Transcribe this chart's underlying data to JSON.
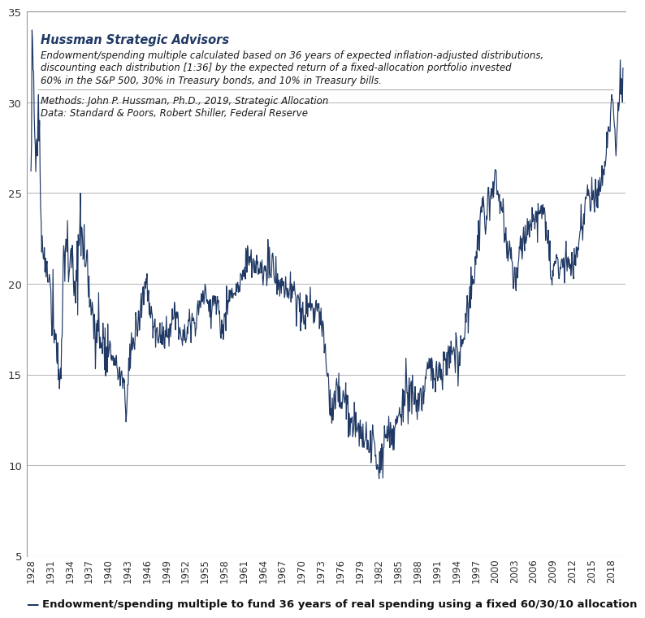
{
  "title_company": "Hussman Strategic Advisors",
  "title_desc1": "Endowment/spending multiple calculated based on 36 years of expected inflation-adjusted distributions,",
  "title_desc2": "discounting each distribution [1:36] by the expected return of a fixed-allocation portfolio invested",
  "title_desc3": "60% in the S&P 500, 30% in Treasury bonds, and 10% in Treasury bills.",
  "methods_line": "Methods: John P. Hussman, Ph.D., 2019, Strategic Allocation",
  "data_line": "Data: Standard & Poors, Robert Shiller, Federal Reserve",
  "legend_label": "Endowment/spending multiple to fund 36 years of real spending using a fixed 60/30/10 allocation",
  "line_color": "#1f3864",
  "background_color": "#ffffff",
  "ylim": [
    5,
    35
  ],
  "yticks": [
    5,
    10,
    15,
    20,
    25,
    30,
    35
  ],
  "grid_color": "#bbbbbb",
  "key_points": [
    [
      1928.0,
      26.0
    ],
    [
      1928.08,
      29.0
    ],
    [
      1928.17,
      33.5
    ],
    [
      1928.33,
      31.0
    ],
    [
      1928.5,
      29.5
    ],
    [
      1928.67,
      27.5
    ],
    [
      1928.83,
      26.0
    ],
    [
      1929.0,
      28.5
    ],
    [
      1929.17,
      30.0
    ],
    [
      1929.33,
      28.0
    ],
    [
      1929.5,
      25.0
    ],
    [
      1929.67,
      22.5
    ],
    [
      1929.83,
      21.5
    ],
    [
      1930.0,
      22.0
    ],
    [
      1930.33,
      21.0
    ],
    [
      1930.67,
      20.0
    ],
    [
      1931.0,
      19.5
    ],
    [
      1931.33,
      18.5
    ],
    [
      1931.67,
      17.0
    ],
    [
      1932.0,
      16.5
    ],
    [
      1932.25,
      15.5
    ],
    [
      1932.5,
      14.5
    ],
    [
      1932.75,
      16.0
    ],
    [
      1933.0,
      21.5
    ],
    [
      1933.25,
      22.5
    ],
    [
      1933.5,
      22.0
    ],
    [
      1933.75,
      21.0
    ],
    [
      1934.0,
      20.5
    ],
    [
      1934.25,
      21.5
    ],
    [
      1934.5,
      20.5
    ],
    [
      1934.75,
      19.5
    ],
    [
      1935.0,
      20.0
    ],
    [
      1935.25,
      21.0
    ],
    [
      1935.5,
      23.0
    ],
    [
      1935.75,
      22.5
    ],
    [
      1936.0,
      22.0
    ],
    [
      1936.25,
      21.5
    ],
    [
      1936.5,
      20.5
    ],
    [
      1936.75,
      20.5
    ],
    [
      1937.0,
      20.0
    ],
    [
      1937.25,
      19.5
    ],
    [
      1937.5,
      18.5
    ],
    [
      1937.75,
      17.5
    ],
    [
      1938.0,
      17.0
    ],
    [
      1938.25,
      17.0
    ],
    [
      1938.5,
      17.5
    ],
    [
      1938.75,
      17.0
    ],
    [
      1939.0,
      17.0
    ],
    [
      1939.25,
      17.0
    ],
    [
      1939.5,
      16.5
    ],
    [
      1939.75,
      16.5
    ],
    [
      1940.0,
      16.5
    ],
    [
      1940.25,
      16.5
    ],
    [
      1940.5,
      16.0
    ],
    [
      1940.75,
      15.5
    ],
    [
      1941.0,
      15.5
    ],
    [
      1941.25,
      15.5
    ],
    [
      1941.5,
      15.0
    ],
    [
      1941.75,
      15.0
    ],
    [
      1942.0,
      15.0
    ],
    [
      1942.25,
      14.5
    ],
    [
      1942.5,
      14.5
    ],
    [
      1942.75,
      12.5
    ],
    [
      1943.0,
      15.0
    ],
    [
      1943.25,
      15.5
    ],
    [
      1943.5,
      16.5
    ],
    [
      1943.75,
      17.0
    ],
    [
      1944.0,
      16.5
    ],
    [
      1944.25,
      17.5
    ],
    [
      1944.5,
      17.5
    ],
    [
      1944.75,
      18.0
    ],
    [
      1945.0,
      18.5
    ],
    [
      1945.25,
      19.0
    ],
    [
      1945.5,
      19.5
    ],
    [
      1945.75,
      20.0
    ],
    [
      1946.0,
      20.0
    ],
    [
      1946.25,
      19.0
    ],
    [
      1946.5,
      18.5
    ],
    [
      1946.75,
      18.0
    ],
    [
      1947.0,
      17.5
    ],
    [
      1947.25,
      17.5
    ],
    [
      1947.5,
      17.5
    ],
    [
      1947.75,
      17.0
    ],
    [
      1948.0,
      17.0
    ],
    [
      1948.25,
      17.0
    ],
    [
      1948.5,
      17.0
    ],
    [
      1948.75,
      17.0
    ],
    [
      1949.0,
      17.5
    ],
    [
      1949.25,
      17.5
    ],
    [
      1949.5,
      17.5
    ],
    [
      1949.75,
      18.0
    ],
    [
      1950.0,
      18.0
    ],
    [
      1950.25,
      18.5
    ],
    [
      1950.5,
      18.0
    ],
    [
      1950.75,
      18.0
    ],
    [
      1951.0,
      17.5
    ],
    [
      1951.25,
      17.5
    ],
    [
      1951.5,
      17.5
    ],
    [
      1951.75,
      17.5
    ],
    [
      1952.0,
      17.5
    ],
    [
      1952.25,
      17.5
    ],
    [
      1952.5,
      18.0
    ],
    [
      1952.75,
      18.0
    ],
    [
      1953.0,
      18.0
    ],
    [
      1953.25,
      18.0
    ],
    [
      1953.5,
      17.5
    ],
    [
      1953.75,
      18.0
    ],
    [
      1954.0,
      18.5
    ],
    [
      1954.25,
      19.0
    ],
    [
      1954.5,
      19.5
    ],
    [
      1954.75,
      19.5
    ],
    [
      1955.0,
      19.5
    ],
    [
      1955.25,
      19.0
    ],
    [
      1955.5,
      19.0
    ],
    [
      1955.75,
      18.5
    ],
    [
      1956.0,
      18.5
    ],
    [
      1956.25,
      19.0
    ],
    [
      1956.5,
      19.0
    ],
    [
      1956.75,
      19.0
    ],
    [
      1957.0,
      19.0
    ],
    [
      1957.25,
      18.5
    ],
    [
      1957.5,
      17.5
    ],
    [
      1957.75,
      17.5
    ],
    [
      1958.0,
      18.0
    ],
    [
      1958.25,
      18.5
    ],
    [
      1958.5,
      19.0
    ],
    [
      1958.75,
      19.5
    ],
    [
      1959.0,
      19.5
    ],
    [
      1959.25,
      19.5
    ],
    [
      1959.5,
      19.5
    ],
    [
      1959.75,
      19.5
    ],
    [
      1960.0,
      19.5
    ],
    [
      1960.25,
      19.5
    ],
    [
      1960.5,
      20.0
    ],
    [
      1960.75,
      20.5
    ],
    [
      1961.0,
      20.5
    ],
    [
      1961.25,
      21.0
    ],
    [
      1961.5,
      21.5
    ],
    [
      1961.75,
      21.5
    ],
    [
      1962.0,
      21.5
    ],
    [
      1962.25,
      21.0
    ],
    [
      1962.5,
      20.5
    ],
    [
      1962.75,
      21.0
    ],
    [
      1963.0,
      21.0
    ],
    [
      1963.25,
      21.0
    ],
    [
      1963.5,
      21.0
    ],
    [
      1963.75,
      21.0
    ],
    [
      1964.0,
      20.5
    ],
    [
      1964.25,
      21.0
    ],
    [
      1964.5,
      20.5
    ],
    [
      1964.75,
      21.0
    ],
    [
      1965.0,
      21.0
    ],
    [
      1965.25,
      20.5
    ],
    [
      1965.5,
      21.0
    ],
    [
      1965.75,
      20.0
    ],
    [
      1966.0,
      20.5
    ],
    [
      1966.25,
      20.0
    ],
    [
      1966.5,
      20.0
    ],
    [
      1966.75,
      20.0
    ],
    [
      1967.0,
      20.0
    ],
    [
      1967.25,
      19.5
    ],
    [
      1967.5,
      20.0
    ],
    [
      1967.75,
      19.5
    ],
    [
      1968.0,
      19.5
    ],
    [
      1968.25,
      19.5
    ],
    [
      1968.5,
      19.5
    ],
    [
      1968.75,
      19.5
    ],
    [
      1969.0,
      19.5
    ],
    [
      1969.25,
      19.0
    ],
    [
      1969.5,
      19.0
    ],
    [
      1969.75,
      18.5
    ],
    [
      1970.0,
      18.5
    ],
    [
      1970.25,
      18.5
    ],
    [
      1970.5,
      18.5
    ],
    [
      1970.75,
      18.5
    ],
    [
      1971.0,
      18.5
    ],
    [
      1971.25,
      19.0
    ],
    [
      1971.5,
      18.5
    ],
    [
      1971.75,
      19.0
    ],
    [
      1972.0,
      18.5
    ],
    [
      1972.25,
      18.5
    ],
    [
      1972.5,
      18.5
    ],
    [
      1972.75,
      18.0
    ],
    [
      1973.0,
      18.0
    ],
    [
      1973.25,
      17.5
    ],
    [
      1973.5,
      16.5
    ],
    [
      1973.75,
      15.5
    ],
    [
      1974.0,
      14.5
    ],
    [
      1974.25,
      14.0
    ],
    [
      1974.5,
      13.5
    ],
    [
      1974.75,
      13.0
    ],
    [
      1975.0,
      13.5
    ],
    [
      1975.25,
      14.0
    ],
    [
      1975.5,
      14.0
    ],
    [
      1975.75,
      14.0
    ],
    [
      1976.0,
      13.5
    ],
    [
      1976.25,
      13.5
    ],
    [
      1976.5,
      13.5
    ],
    [
      1976.75,
      13.5
    ],
    [
      1977.0,
      13.5
    ],
    [
      1977.25,
      13.0
    ],
    [
      1977.5,
      12.5
    ],
    [
      1977.75,
      12.5
    ],
    [
      1978.0,
      12.0
    ],
    [
      1978.25,
      12.0
    ],
    [
      1978.5,
      12.0
    ],
    [
      1978.75,
      12.0
    ],
    [
      1979.0,
      12.0
    ],
    [
      1979.25,
      11.5
    ],
    [
      1979.5,
      11.5
    ],
    [
      1979.75,
      11.0
    ],
    [
      1980.0,
      11.5
    ],
    [
      1980.25,
      11.5
    ],
    [
      1980.5,
      11.0
    ],
    [
      1980.75,
      11.0
    ],
    [
      1981.0,
      11.0
    ],
    [
      1981.25,
      10.5
    ],
    [
      1981.5,
      10.5
    ],
    [
      1981.75,
      10.0
    ],
    [
      1982.0,
      10.0
    ],
    [
      1982.25,
      10.0
    ],
    [
      1982.5,
      10.5
    ],
    [
      1982.75,
      11.5
    ],
    [
      1983.0,
      11.5
    ],
    [
      1983.25,
      12.0
    ],
    [
      1983.5,
      12.0
    ],
    [
      1983.75,
      12.0
    ],
    [
      1984.0,
      12.0
    ],
    [
      1984.25,
      12.0
    ],
    [
      1984.5,
      12.0
    ],
    [
      1984.75,
      12.0
    ],
    [
      1985.0,
      12.5
    ],
    [
      1985.25,
      12.5
    ],
    [
      1985.5,
      13.0
    ],
    [
      1985.75,
      13.5
    ],
    [
      1986.0,
      13.5
    ],
    [
      1986.25,
      14.0
    ],
    [
      1986.5,
      14.0
    ],
    [
      1986.75,
      14.0
    ],
    [
      1987.0,
      14.0
    ],
    [
      1987.25,
      14.0
    ],
    [
      1987.5,
      13.5
    ],
    [
      1987.75,
      14.0
    ],
    [
      1988.0,
      13.5
    ],
    [
      1988.25,
      14.0
    ],
    [
      1988.5,
      14.0
    ],
    [
      1988.75,
      14.0
    ],
    [
      1989.0,
      14.5
    ],
    [
      1989.25,
      15.0
    ],
    [
      1989.5,
      15.0
    ],
    [
      1989.75,
      15.5
    ],
    [
      1990.0,
      15.5
    ],
    [
      1990.25,
      15.0
    ],
    [
      1990.5,
      15.0
    ],
    [
      1990.75,
      15.0
    ],
    [
      1991.0,
      15.0
    ],
    [
      1991.25,
      15.5
    ],
    [
      1991.5,
      15.5
    ],
    [
      1991.75,
      15.5
    ],
    [
      1992.0,
      15.5
    ],
    [
      1992.25,
      15.5
    ],
    [
      1992.5,
      15.5
    ],
    [
      1992.75,
      15.5
    ],
    [
      1993.0,
      16.0
    ],
    [
      1993.25,
      16.0
    ],
    [
      1993.5,
      16.5
    ],
    [
      1993.75,
      16.5
    ],
    [
      1994.0,
      16.5
    ],
    [
      1994.25,
      16.0
    ],
    [
      1994.5,
      16.0
    ],
    [
      1994.75,
      16.5
    ],
    [
      1995.0,
      17.0
    ],
    [
      1995.25,
      17.5
    ],
    [
      1995.5,
      18.0
    ],
    [
      1995.75,
      18.5
    ],
    [
      1996.0,
      19.0
    ],
    [
      1996.25,
      19.5
    ],
    [
      1996.5,
      20.0
    ],
    [
      1996.75,
      20.5
    ],
    [
      1997.0,
      21.5
    ],
    [
      1997.25,
      22.0
    ],
    [
      1997.5,
      22.5
    ],
    [
      1997.75,
      24.0
    ],
    [
      1998.0,
      24.0
    ],
    [
      1998.25,
      24.5
    ],
    [
      1998.5,
      23.0
    ],
    [
      1998.75,
      24.0
    ],
    [
      1999.0,
      24.5
    ],
    [
      1999.25,
      24.5
    ],
    [
      1999.5,
      25.0
    ],
    [
      1999.75,
      25.5
    ],
    [
      2000.0,
      26.5
    ],
    [
      2000.25,
      25.5
    ],
    [
      2000.5,
      25.0
    ],
    [
      2000.75,
      24.5
    ],
    [
      2001.0,
      24.0
    ],
    [
      2001.25,
      23.5
    ],
    [
      2001.5,
      23.0
    ],
    [
      2001.75,
      22.5
    ],
    [
      2002.0,
      22.0
    ],
    [
      2002.25,
      22.0
    ],
    [
      2002.5,
      21.5
    ],
    [
      2002.75,
      21.0
    ],
    [
      2003.0,
      20.0
    ],
    [
      2003.25,
      20.5
    ],
    [
      2003.5,
      21.0
    ],
    [
      2003.75,
      21.5
    ],
    [
      2004.0,
      22.0
    ],
    [
      2004.25,
      22.0
    ],
    [
      2004.5,
      22.5
    ],
    [
      2004.75,
      22.5
    ],
    [
      2005.0,
      22.5
    ],
    [
      2005.25,
      23.0
    ],
    [
      2005.5,
      23.0
    ],
    [
      2005.75,
      23.0
    ],
    [
      2006.0,
      23.5
    ],
    [
      2006.25,
      23.5
    ],
    [
      2006.5,
      23.5
    ],
    [
      2006.75,
      24.0
    ],
    [
      2007.0,
      24.5
    ],
    [
      2007.25,
      24.0
    ],
    [
      2007.5,
      24.5
    ],
    [
      2007.75,
      23.5
    ],
    [
      2008.0,
      23.0
    ],
    [
      2008.25,
      22.5
    ],
    [
      2008.5,
      21.5
    ],
    [
      2008.75,
      20.0
    ],
    [
      2009.0,
      20.5
    ],
    [
      2009.25,
      21.0
    ],
    [
      2009.5,
      21.5
    ],
    [
      2009.75,
      21.0
    ],
    [
      2010.0,
      20.5
    ],
    [
      2010.25,
      21.0
    ],
    [
      2010.5,
      20.5
    ],
    [
      2010.75,
      21.0
    ],
    [
      2011.0,
      21.5
    ],
    [
      2011.25,
      21.5
    ],
    [
      2011.5,
      21.0
    ],
    [
      2011.75,
      21.0
    ],
    [
      2012.0,
      21.0
    ],
    [
      2012.25,
      21.5
    ],
    [
      2012.5,
      21.5
    ],
    [
      2012.75,
      22.0
    ],
    [
      2013.0,
      22.5
    ],
    [
      2013.25,
      23.0
    ],
    [
      2013.5,
      23.5
    ],
    [
      2013.75,
      23.5
    ],
    [
      2014.0,
      24.0
    ],
    [
      2014.25,
      24.5
    ],
    [
      2014.5,
      24.5
    ],
    [
      2014.75,
      24.5
    ],
    [
      2015.0,
      25.0
    ],
    [
      2015.25,
      25.0
    ],
    [
      2015.5,
      25.0
    ],
    [
      2015.75,
      25.0
    ],
    [
      2016.0,
      25.5
    ],
    [
      2016.25,
      25.0
    ],
    [
      2016.5,
      25.5
    ],
    [
      2016.75,
      26.0
    ],
    [
      2017.0,
      27.0
    ],
    [
      2017.25,
      27.5
    ],
    [
      2017.5,
      28.0
    ],
    [
      2017.75,
      28.5
    ],
    [
      2018.0,
      29.5
    ],
    [
      2018.08,
      30.5
    ],
    [
      2018.17,
      31.0
    ],
    [
      2018.25,
      30.0
    ],
    [
      2018.5,
      29.0
    ],
    [
      2018.75,
      27.5
    ],
    [
      2019.0,
      29.0
    ],
    [
      2019.17,
      30.0
    ],
    [
      2019.25,
      30.5
    ],
    [
      2019.5,
      31.0
    ],
    [
      2019.67,
      30.5
    ],
    [
      2019.75,
      31.0
    ]
  ]
}
